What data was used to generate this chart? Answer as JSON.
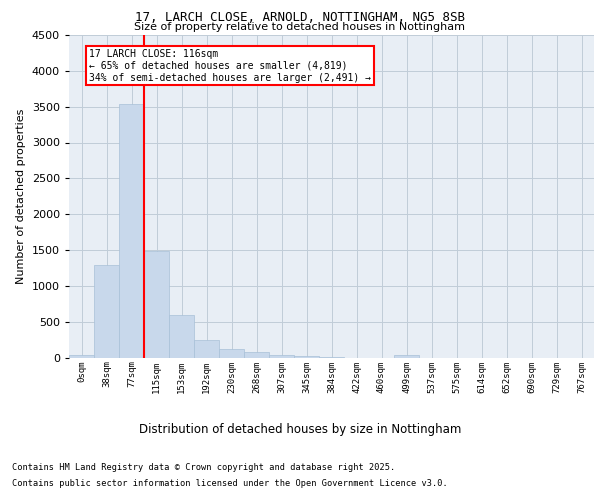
{
  "title_line1": "17, LARCH CLOSE, ARNOLD, NOTTINGHAM, NG5 8SB",
  "title_line2": "Size of property relative to detached houses in Nottingham",
  "xlabel": "Distribution of detached houses by size in Nottingham",
  "ylabel": "Number of detached properties",
  "bin_labels": [
    "0sqm",
    "38sqm",
    "77sqm",
    "115sqm",
    "153sqm",
    "192sqm",
    "230sqm",
    "268sqm",
    "307sqm",
    "345sqm",
    "384sqm",
    "422sqm",
    "460sqm",
    "499sqm",
    "537sqm",
    "575sqm",
    "614sqm",
    "652sqm",
    "690sqm",
    "729sqm",
    "767sqm"
  ],
  "bar_values": [
    30,
    1290,
    3540,
    1490,
    600,
    250,
    120,
    75,
    40,
    20,
    5,
    0,
    0,
    40,
    0,
    0,
    0,
    0,
    0,
    0,
    0
  ],
  "bar_color": "#c8d8eb",
  "bar_edgecolor": "#a8c0d8",
  "grid_color": "#c0ccd8",
  "background_color": "#e8eef5",
  "vline_color": "red",
  "annotation_text": "17 LARCH CLOSE: 116sqm\n← 65% of detached houses are smaller (4,819)\n34% of semi-detached houses are larger (2,491) →",
  "ylim": [
    0,
    4500
  ],
  "yticks": [
    0,
    500,
    1000,
    1500,
    2000,
    2500,
    3000,
    3500,
    4000,
    4500
  ],
  "footnote_line1": "Contains HM Land Registry data © Crown copyright and database right 2025.",
  "footnote_line2": "Contains public sector information licensed under the Open Government Licence v3.0."
}
